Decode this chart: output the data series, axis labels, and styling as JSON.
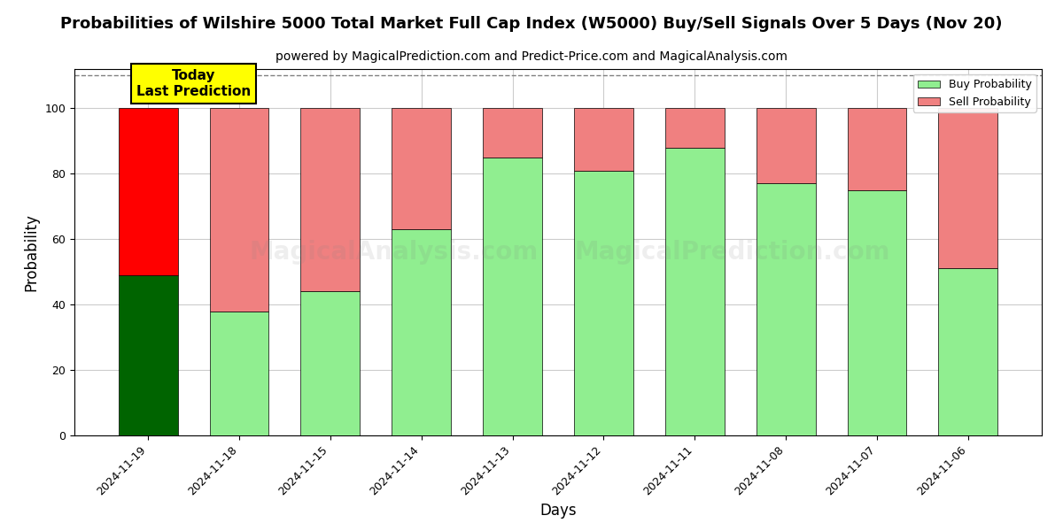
{
  "title": "Probabilities of Wilshire 5000 Total Market Full Cap Index (W5000) Buy/Sell Signals Over 5 Days (Nov 20)",
  "subtitle": "powered by MagicalPrediction.com and Predict-Price.com and MagicalAnalysis.com",
  "xlabel": "Days",
  "ylabel": "Probability",
  "dates": [
    "2024-11-19",
    "2024-11-18",
    "2024-11-15",
    "2024-11-14",
    "2024-11-13",
    "2024-11-12",
    "2024-11-11",
    "2024-11-08",
    "2024-11-07",
    "2024-11-06"
  ],
  "buy_values": [
    49,
    38,
    44,
    63,
    85,
    81,
    88,
    77,
    75,
    51
  ],
  "sell_values": [
    51,
    62,
    56,
    37,
    15,
    19,
    12,
    23,
    25,
    49
  ],
  "today_buy_color": "#006400",
  "today_sell_color": "#ff0000",
  "buy_color": "#90EE90",
  "sell_color": "#F08080",
  "today_annotation": "Today\nLast Prediction",
  "ylim": [
    0,
    112
  ],
  "yticks": [
    0,
    20,
    40,
    60,
    80,
    100
  ],
  "dashed_line_y": 110,
  "legend_buy_label": "Buy Probability",
  "legend_sell_label": "Sell Probability",
  "background_color": "#ffffff",
  "grid_color": "#cccccc",
  "title_fontsize": 13,
  "subtitle_fontsize": 10,
  "axis_label_fontsize": 12,
  "tick_fontsize": 9,
  "bar_width": 0.65
}
